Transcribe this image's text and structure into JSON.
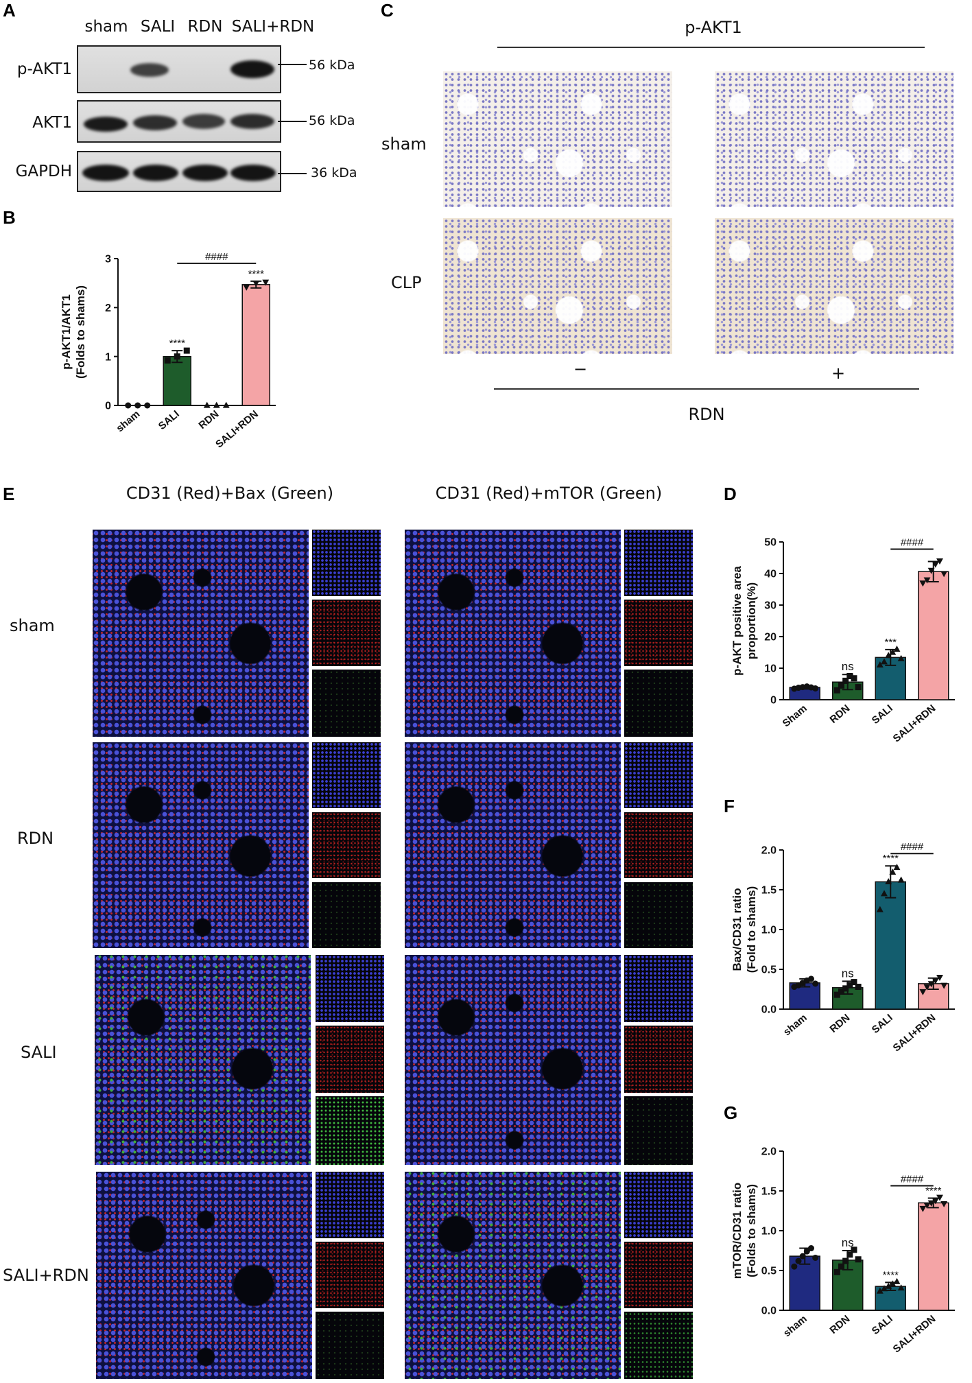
{
  "panels": {
    "A": "A",
    "B": "B",
    "C": "C",
    "D": "D",
    "E": "E",
    "F": "F",
    "G": "G"
  },
  "blot": {
    "lanes": [
      "sham",
      "SALI",
      "RDN",
      "SALI+RDN"
    ],
    "rows": [
      {
        "label": "p-AKT1",
        "kda": "56 kDa",
        "intensity": [
          0,
          0.72,
          0,
          0.95
        ]
      },
      {
        "label": "AKT1",
        "kda": "56 kDa",
        "intensity": [
          0.9,
          0.85,
          0.8,
          0.88
        ]
      },
      {
        "label": "GAPDH",
        "kda": "36 kDa",
        "intensity": [
          0.95,
          0.95,
          0.95,
          0.95
        ]
      }
    ]
  },
  "ihc": {
    "title": "p-AKT1",
    "rows": [
      "sham",
      "CLP"
    ],
    "cols": [
      "−",
      "+"
    ],
    "xlabel": "RDN"
  },
  "fluo": {
    "title_left": "CD31 (Red)+Bax (Green)",
    "title_right": "CD31 (Red)+mTOR (Green)",
    "rows": [
      "sham",
      "RDN",
      "SALI",
      "SALI+RDN"
    ]
  },
  "colors": {
    "sham": "#1f2a80",
    "RDN": "#1e5c2b",
    "SALI": "#135d6e",
    "SALI+RDN": "#f4a4a6",
    "SALI_B": "#1e5c2b"
  },
  "chart_data": [
    {
      "id": "B",
      "type": "bar",
      "ylabel": "p-AKT1/AKT1\n(Folds to shams)",
      "categories": [
        "sham",
        "SALI",
        "RDN",
        "SALI+RDN"
      ],
      "values": [
        0,
        1.0,
        0,
        2.47
      ],
      "errors": [
        0,
        0.12,
        0,
        0.07
      ],
      "ylim": [
        0,
        3
      ],
      "yticks": [
        0,
        1,
        2,
        3
      ],
      "colors": [
        "#1f2a80",
        "#1e5c2b",
        "#135d6e",
        "#f4a4a6"
      ],
      "points": [
        [
          0,
          0,
          0
        ],
        [
          0.92,
          1.0,
          1.12
        ],
        [
          0,
          0,
          0
        ],
        [
          2.42,
          2.5,
          2.52
        ]
      ],
      "markers": [
        "circle",
        "square",
        "triangle",
        "triangle-down"
      ],
      "sig": [
        "",
        "****",
        "",
        "****"
      ],
      "bracket": {
        "from": 1,
        "to": 3,
        "label": "####"
      }
    },
    {
      "id": "D",
      "type": "bar",
      "ylabel": "p-AKT positive area\nproportion(%)",
      "categories": [
        "Sham",
        "RDN",
        "SALI",
        "SALI+RDN"
      ],
      "values": [
        3.9,
        5.6,
        13.4,
        40.6
      ],
      "errors": [
        0.5,
        2.4,
        2.5,
        3.2
      ],
      "ylim": [
        0,
        50
      ],
      "yticks": [
        0,
        10,
        20,
        30,
        40,
        50
      ],
      "colors": [
        "#1f2a80",
        "#1e5c2b",
        "#135d6e",
        "#f4a4a6"
      ],
      "points": [
        [
          3.5,
          3.8,
          4.0,
          4.2,
          3.9,
          3.6
        ],
        [
          3.0,
          4.5,
          6.0,
          7.5,
          6.8,
          4.0
        ],
        [
          11,
          12,
          14,
          15,
          16,
          13
        ],
        [
          37,
          38,
          41,
          43,
          44,
          40
        ]
      ],
      "markers": [
        "circle",
        "square",
        "triangle",
        "triangle-down"
      ],
      "sig": [
        "",
        "ns",
        "***",
        ""
      ],
      "bracket": {
        "from": 2,
        "to": 3,
        "label": "####"
      }
    },
    {
      "id": "F",
      "type": "bar",
      "ylabel": "Bax/CD31 ratio\n(Fold to shams)",
      "categories": [
        "sham",
        "RDN",
        "SALI",
        "SALI+RDN"
      ],
      "values": [
        0.33,
        0.27,
        1.6,
        0.32
      ],
      "errors": [
        0.05,
        0.08,
        0.2,
        0.07
      ],
      "ylim": [
        0,
        2.0
      ],
      "yticks": [
        0.0,
        0.5,
        1.0,
        1.5,
        2.0
      ],
      "colors": [
        "#1f2a80",
        "#1e5c2b",
        "#135d6e",
        "#f4a4a6"
      ],
      "points": [
        [
          0.28,
          0.3,
          0.33,
          0.36,
          0.38,
          0.32
        ],
        [
          0.18,
          0.22,
          0.26,
          0.3,
          0.34,
          0.28
        ],
        [
          1.25,
          1.45,
          1.6,
          1.72,
          1.78,
          1.62
        ],
        [
          0.22,
          0.28,
          0.32,
          0.36,
          0.4,
          0.3
        ]
      ],
      "markers": [
        "circle",
        "square",
        "triangle",
        "triangle-down"
      ],
      "sig": [
        "",
        "ns",
        "****",
        ""
      ],
      "bracket": {
        "from": 2,
        "to": 3,
        "label": "####"
      }
    },
    {
      "id": "G",
      "type": "bar",
      "ylabel": "mTOR/CD31 ratio\n(Folds to shams)",
      "categories": [
        "sham",
        "RDN",
        "SALI",
        "SALI+RDN"
      ],
      "values": [
        0.68,
        0.63,
        0.3,
        1.35
      ],
      "errors": [
        0.1,
        0.12,
        0.05,
        0.06
      ],
      "ylim": [
        0,
        2.0
      ],
      "yticks": [
        0.0,
        0.5,
        1.0,
        1.5,
        2.0
      ],
      "colors": [
        "#1f2a80",
        "#1e5c2b",
        "#135d6e",
        "#f4a4a6"
      ],
      "points": [
        [
          0.55,
          0.62,
          0.68,
          0.74,
          0.78,
          0.66
        ],
        [
          0.48,
          0.55,
          0.62,
          0.7,
          0.76,
          0.64
        ],
        [
          0.24,
          0.27,
          0.3,
          0.33,
          0.36,
          0.28
        ],
        [
          1.28,
          1.32,
          1.35,
          1.38,
          1.42,
          1.34
        ]
      ],
      "markers": [
        "circle",
        "square",
        "triangle",
        "triangle-down"
      ],
      "sig": [
        "",
        "ns",
        "****",
        "****"
      ],
      "bracket": {
        "from": 2,
        "to": 3,
        "label": "####"
      }
    }
  ]
}
